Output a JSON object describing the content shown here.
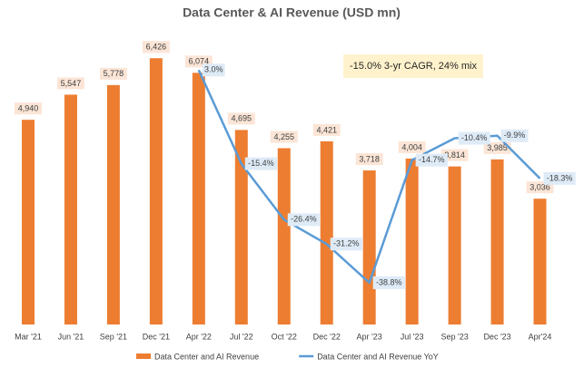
{
  "chart_data": {
    "type": "bar_line",
    "title": "Data Center & AI Revenue (USD mn)",
    "categories": [
      "Mar '21",
      "Jun '21",
      "Sep '21",
      "Dec '21",
      "Apr '22",
      "Jul '22",
      "Oct '22",
      "Dec '22",
      "Apr '23",
      "Jul '23",
      "Sep '23",
      "Dec '23",
      "Apr'24"
    ],
    "series": [
      {
        "name": "Data Center and AI Revenue",
        "color": "#ed7d31",
        "kind": "bar",
        "values": [
          4940,
          5547,
          5778,
          6426,
          6074,
          4695,
          4255,
          4421,
          3718,
          4004,
          3814,
          3985,
          3036
        ],
        "value_labels": [
          "4,940",
          "5,547",
          "5,778",
          "6,426",
          "6,074",
          "4,695",
          "4,255",
          "4,421",
          "3,718",
          "4,004",
          "3,814",
          "3,985",
          "3,036"
        ]
      },
      {
        "name": "Data Center and AI Revenue YoY",
        "color": "#5b9bd5",
        "kind": "line",
        "axis": "y2",
        "values": [
          null,
          null,
          null,
          null,
          3.0,
          -15.4,
          -26.4,
          -31.2,
          -38.8,
          -14.7,
          -10.4,
          -9.9,
          -18.3
        ],
        "value_labels": [
          null,
          null,
          null,
          null,
          "3.0%",
          "-15.4%",
          "-26.4%",
          "-31.2%",
          "-38.8%",
          "-14.7%",
          "-10.4%",
          "-9.9%",
          "-18.3%"
        ]
      }
    ],
    "ylim": [
      0,
      7000
    ],
    "y2lim": [
      -47,
      10
    ],
    "annotation": "-15.0% 3-yr CAGR, 24% mix"
  }
}
